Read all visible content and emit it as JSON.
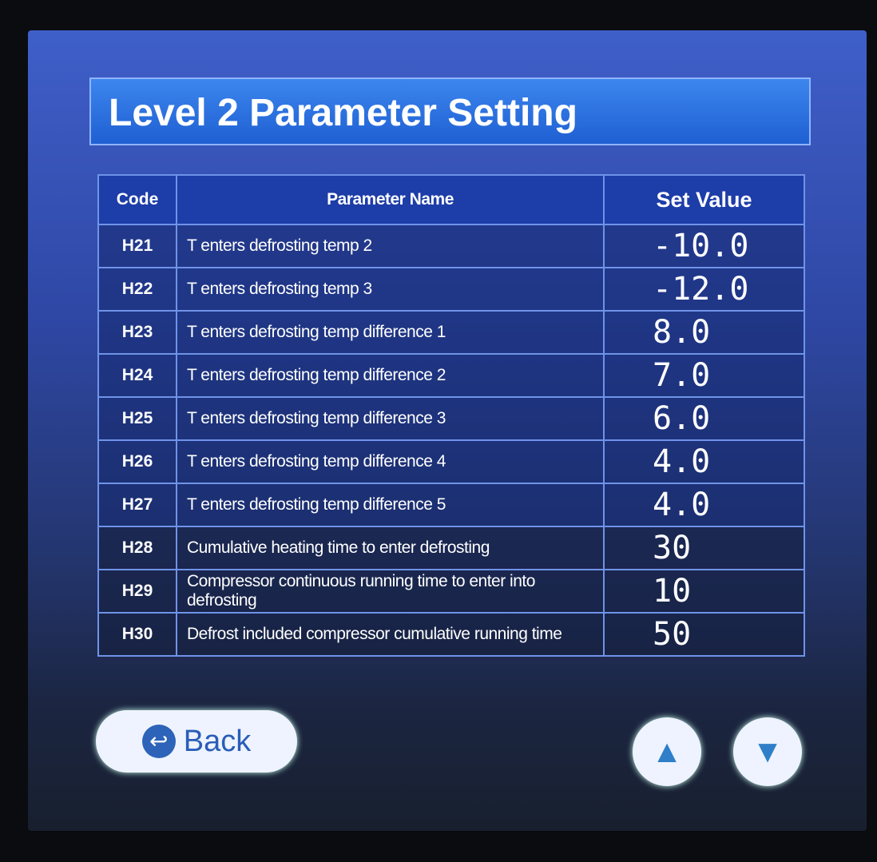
{
  "title": "Level 2 Parameter Setting",
  "table": {
    "headers": [
      "Code",
      "Parameter Name",
      "Set Value"
    ],
    "rows": [
      {
        "code": "H21",
        "name": "T enters defrosting temp 2",
        "value": "-10.0"
      },
      {
        "code": "H22",
        "name": "T enters defrosting temp 3",
        "value": "-12.0"
      },
      {
        "code": "H23",
        "name": "T enters defrosting temp difference 1",
        "value": "8.0"
      },
      {
        "code": "H24",
        "name": "T enters defrosting temp difference 2",
        "value": "7.0"
      },
      {
        "code": "H25",
        "name": "T enters defrosting temp difference 3",
        "value": "6.0"
      },
      {
        "code": "H26",
        "name": "T enters defrosting temp difference 4",
        "value": "4.0"
      },
      {
        "code": "H27",
        "name": "T enters defrosting temp difference 5",
        "value": "4.0"
      },
      {
        "code": "H28",
        "name": "Cumulative heating time to enter defrosting",
        "value": "30"
      },
      {
        "code": "H29",
        "name": "Compressor continuous running time to enter into defrosting",
        "value": "10"
      },
      {
        "code": "H30",
        "name": "Defrost included compressor cumulative running time",
        "value": "50"
      }
    ]
  },
  "buttons": {
    "back": "Back",
    "up_icon": "triangle-up",
    "down_icon": "triangle-down",
    "back_icon": "return-arrow"
  }
}
